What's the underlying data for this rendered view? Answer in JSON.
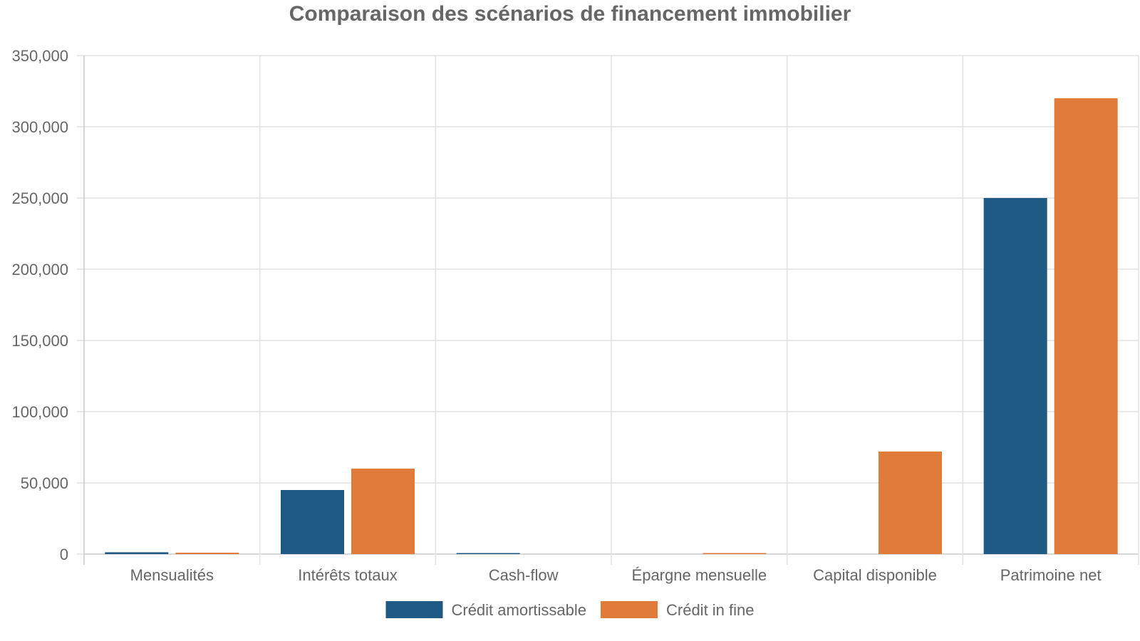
{
  "chart_data": {
    "type": "bar",
    "title": "Comparaison des scénarios de financement immobilier",
    "xlabel": "",
    "ylabel": "",
    "categories": [
      "Mensualités",
      "Intérêts totaux",
      "Cash-flow",
      "Épargne mensuelle",
      "Capital disponible",
      "Patrimoine net"
    ],
    "series": [
      {
        "name": "Crédit amortissable",
        "color": "#1f5a85",
        "values": [
          1300,
          45000,
          300,
          0,
          0,
          250000
        ]
      },
      {
        "name": "Crédit in fine",
        "color": "#e07b39",
        "values": [
          1000,
          60000,
          0,
          200,
          72000,
          320000
        ]
      }
    ],
    "ylim": [
      0,
      350000
    ],
    "yticks": [
      0,
      50000,
      100000,
      150000,
      200000,
      250000,
      300000,
      350000
    ],
    "ytick_labels": [
      "0",
      "50,000",
      "100,000",
      "150,000",
      "200,000",
      "250,000",
      "300,000",
      "350,000"
    ],
    "grid": true,
    "legend_position": "bottom-center"
  }
}
